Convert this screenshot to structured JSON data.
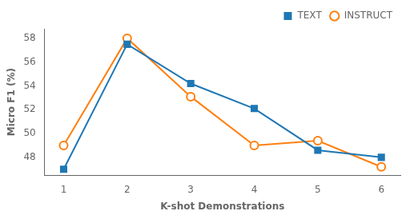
{
  "chart_data": {
    "type": "line",
    "x": [
      1,
      2,
      3,
      4,
      5,
      6
    ],
    "series": [
      {
        "name": "TEXT",
        "color": "#1f77b4",
        "marker": "square",
        "values": [
          47.0,
          57.5,
          54.2,
          52.1,
          48.6,
          48.0
        ]
      },
      {
        "name": "INSTRUCT",
        "color": "#ff7f0e",
        "marker": "circle",
        "values": [
          49.0,
          58.0,
          53.1,
          49.0,
          49.4,
          47.2
        ]
      }
    ],
    "xlabel": "K-shot Demonstrations",
    "ylabel": "Micro F1 (%)",
    "xlim": [
      0.7,
      6.3
    ],
    "ylim": [
      46.5,
      58.8
    ],
    "xticks": [
      1,
      2,
      3,
      4,
      5,
      6
    ],
    "yticks": [
      48,
      50,
      52,
      54,
      56,
      58
    ],
    "grid": false,
    "legend": "upper right"
  }
}
